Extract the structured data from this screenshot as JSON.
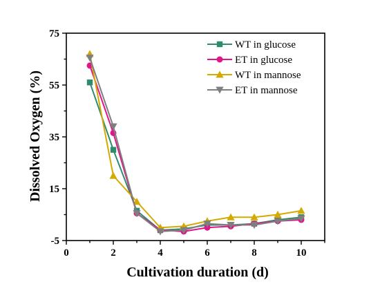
{
  "chart_data": {
    "type": "line",
    "title": "",
    "xlabel": "Cultivation duration (d)",
    "ylabel": "Dissolved Oxygen (%)",
    "xlim": [
      0,
      11
    ],
    "ylim": [
      -5,
      75
    ],
    "x_ticks": [
      "0",
      "2",
      "4",
      "6",
      "8",
      "10"
    ],
    "y_ticks": [
      "-5",
      "15",
      "35",
      "55",
      "75"
    ],
    "x": [
      1,
      2,
      3,
      4,
      5,
      6,
      7,
      8,
      9,
      10
    ],
    "legend_position": "top-right",
    "grid": false,
    "series": [
      {
        "name": "WT in glucose",
        "color": "#2e8b6e",
        "marker": "square",
        "values": [
          56,
          30,
          6.5,
          -1,
          -0.5,
          1,
          1,
          1.5,
          3,
          4
        ]
      },
      {
        "name": "ET in glucose",
        "color": "#e0158a",
        "marker": "circle",
        "values": [
          62.5,
          36.5,
          5.5,
          -1,
          -1.5,
          0,
          0.5,
          1.5,
          2.5,
          3
        ]
      },
      {
        "name": "WT in mannose",
        "color": "#d4aa00",
        "marker": "triangle-up",
        "values": [
          67,
          20,
          10,
          0,
          0.5,
          2.5,
          4,
          4,
          5,
          6.5
        ]
      },
      {
        "name": "ET in mannose",
        "color": "#7f7f7f",
        "marker": "triangle-down",
        "values": [
          65.5,
          39,
          5.5,
          -1.5,
          -1,
          1.5,
          1,
          1,
          2.5,
          3.5
        ]
      }
    ]
  }
}
